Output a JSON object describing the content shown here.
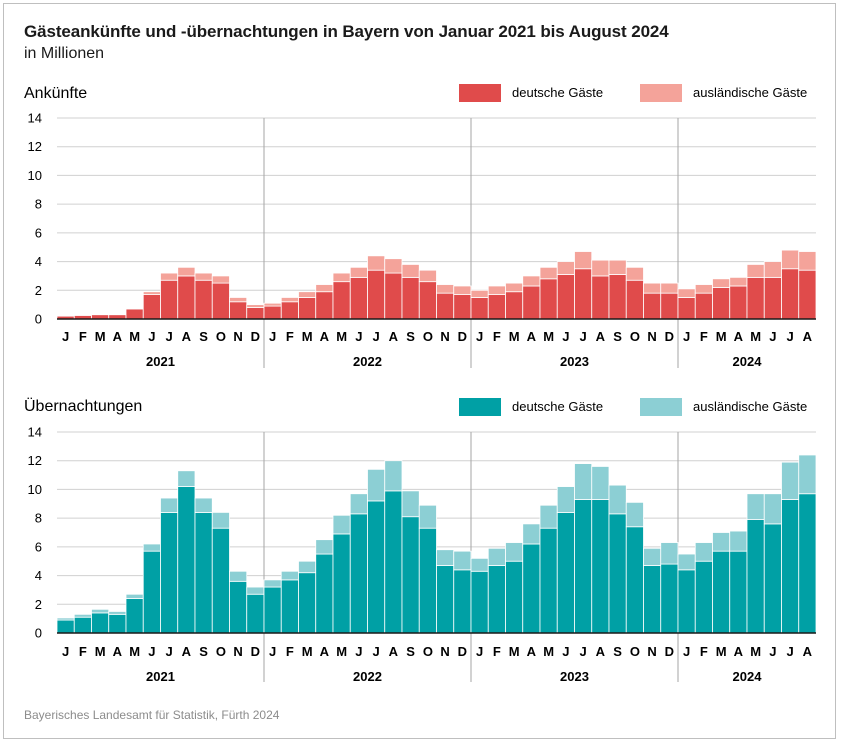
{
  "title": "Gästeankünfte und -übernachtungen in Bayern von Januar 2021 bis August 2024",
  "subtitle": "in Millionen",
  "source": "Bayerisches Landesamt für Statistik, Fürth 2024",
  "colors": {
    "arrivals_domestic": "#e04b4b",
    "arrivals_foreign": "#f4a39a",
    "nights_domestic": "#00a0a5",
    "nights_foreign": "#8ccfd4",
    "grid": "#d0d0d0",
    "axis": "#1a1a1a",
    "divider": "#a6a6a6"
  },
  "chart_data": [
    {
      "type": "bar",
      "stacked": true,
      "title": "Ankünfte",
      "ylim": [
        0,
        14
      ],
      "yticks": [
        0,
        2,
        4,
        6,
        8,
        10,
        12,
        14
      ],
      "month_labels": [
        "J",
        "F",
        "M",
        "A",
        "M",
        "J",
        "J",
        "A",
        "S",
        "O",
        "N",
        "D",
        "J",
        "F",
        "M",
        "A",
        "M",
        "J",
        "J",
        "A",
        "S",
        "O",
        "N",
        "D",
        "J",
        "F",
        "M",
        "A",
        "M",
        "J",
        "J",
        "A",
        "S",
        "O",
        "N",
        "D",
        "J",
        "F",
        "M",
        "A",
        "M",
        "J",
        "J",
        "A"
      ],
      "year_labels": [
        "2021",
        "2022",
        "2023",
        "2024"
      ],
      "grid": true,
      "legend_position": "top-right",
      "series": [
        {
          "name": "deutsche Gäste",
          "values": [
            0.2,
            0.25,
            0.3,
            0.3,
            0.7,
            1.7,
            2.7,
            3.0,
            2.7,
            2.5,
            1.2,
            0.8,
            0.9,
            1.2,
            1.5,
            1.9,
            2.6,
            2.9,
            3.4,
            3.2,
            2.9,
            2.6,
            1.8,
            1.7,
            1.5,
            1.7,
            1.9,
            2.3,
            2.8,
            3.1,
            3.5,
            3.0,
            3.1,
            2.7,
            1.8,
            1.8,
            1.5,
            1.8,
            2.2,
            2.3,
            2.9,
            2.9,
            3.5,
            3.4
          ]
        },
        {
          "name": "ausländische Gäste",
          "values": [
            0.05,
            0.05,
            0.05,
            0.05,
            0.05,
            0.2,
            0.5,
            0.6,
            0.5,
            0.5,
            0.3,
            0.2,
            0.2,
            0.3,
            0.4,
            0.5,
            0.6,
            0.7,
            1.0,
            1.0,
            0.9,
            0.8,
            0.6,
            0.6,
            0.5,
            0.6,
            0.6,
            0.7,
            0.8,
            0.9,
            1.2,
            1.1,
            1.0,
            0.9,
            0.7,
            0.7,
            0.6,
            0.6,
            0.6,
            0.6,
            0.9,
            1.1,
            1.3,
            1.3
          ]
        }
      ]
    },
    {
      "type": "bar",
      "stacked": true,
      "title": "Übernachtungen",
      "ylim": [
        0,
        14
      ],
      "yticks": [
        0,
        2,
        4,
        6,
        8,
        10,
        12,
        14
      ],
      "month_labels": [
        "J",
        "F",
        "M",
        "A",
        "M",
        "J",
        "J",
        "A",
        "S",
        "O",
        "N",
        "D",
        "J",
        "F",
        "M",
        "A",
        "M",
        "J",
        "J",
        "A",
        "S",
        "O",
        "N",
        "D",
        "J",
        "F",
        "M",
        "A",
        "M",
        "J",
        "J",
        "A",
        "S",
        "O",
        "N",
        "D",
        "J",
        "F",
        "M",
        "A",
        "M",
        "J",
        "J",
        "A"
      ],
      "year_labels": [
        "2021",
        "2022",
        "2023",
        "2024"
      ],
      "grid": true,
      "legend_position": "top-right",
      "series": [
        {
          "name": "deutsche Gäste",
          "values": [
            0.9,
            1.1,
            1.4,
            1.3,
            2.4,
            5.7,
            8.4,
            10.2,
            8.4,
            7.3,
            3.6,
            2.7,
            3.2,
            3.7,
            4.2,
            5.5,
            6.9,
            8.3,
            9.2,
            9.9,
            8.1,
            7.3,
            4.7,
            4.4,
            4.3,
            4.7,
            5.0,
            6.2,
            7.3,
            8.4,
            9.3,
            9.3,
            8.3,
            7.4,
            4.7,
            4.8,
            4.4,
            5.0,
            5.7,
            5.7,
            7.9,
            7.6,
            9.3,
            9.7
          ]
        },
        {
          "name": "ausländische Gäste",
          "values": [
            0.15,
            0.2,
            0.25,
            0.2,
            0.3,
            0.5,
            1.0,
            1.1,
            1.0,
            1.1,
            0.7,
            0.5,
            0.5,
            0.6,
            0.8,
            1.0,
            1.3,
            1.4,
            2.2,
            2.1,
            1.8,
            1.6,
            1.1,
            1.3,
            0.9,
            1.2,
            1.3,
            1.4,
            1.6,
            1.8,
            2.5,
            2.3,
            2.0,
            1.7,
            1.2,
            1.5,
            1.1,
            1.3,
            1.3,
            1.4,
            1.8,
            2.1,
            2.6,
            2.7
          ]
        }
      ]
    }
  ]
}
